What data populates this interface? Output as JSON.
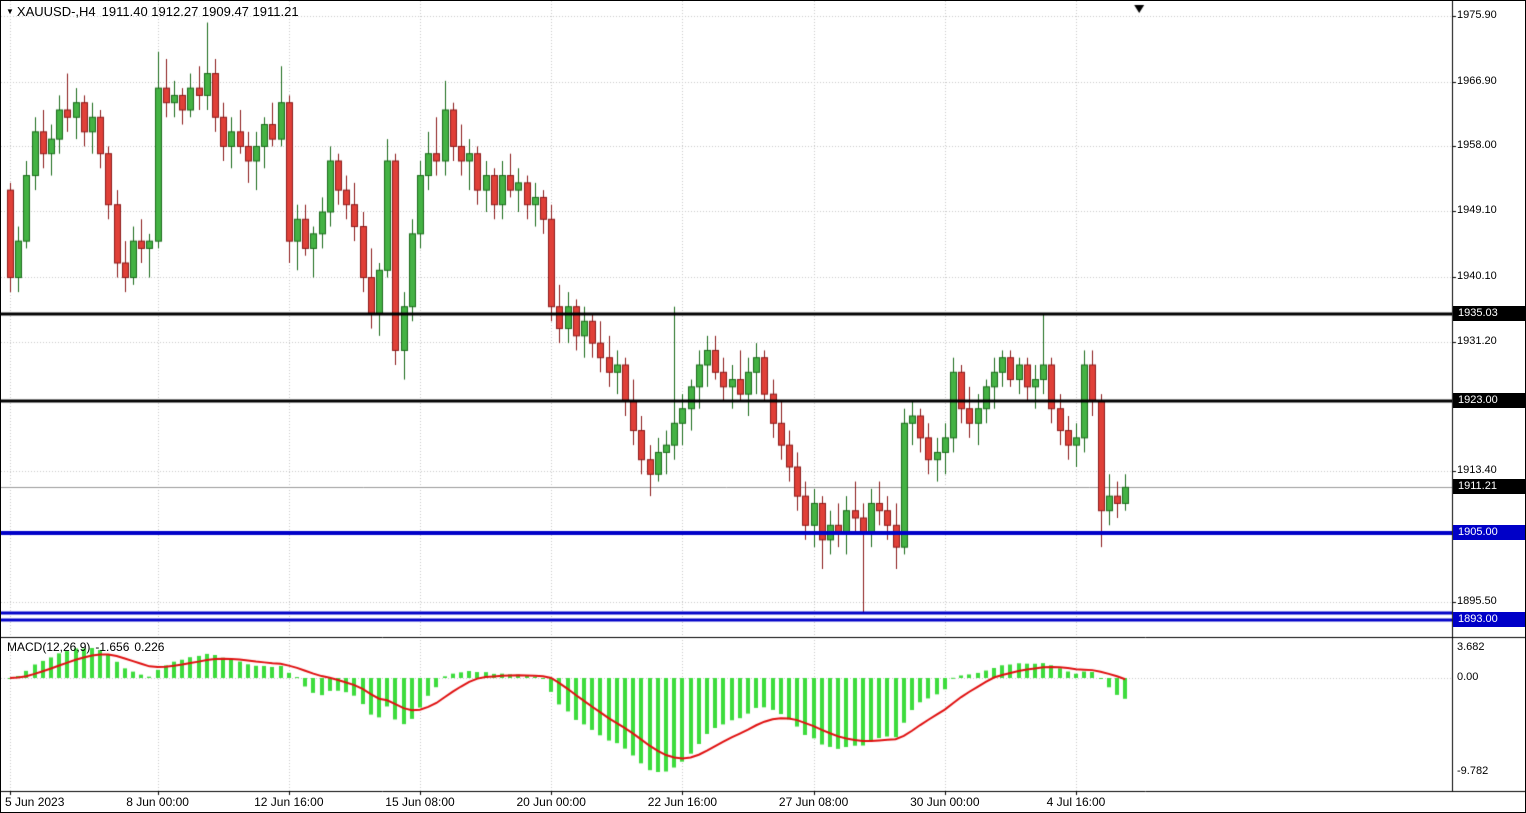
{
  "header": {
    "dropdown_icon": "▼",
    "symbol_period": "XAUUSD-,H4",
    "ohlc": "1911.40 1912.27 1909.47 1911.21"
  },
  "chart_data": {
    "type": "candlestick",
    "symbol": "XAUUSD-",
    "period": "H4",
    "ohlc_display": {
      "open": "1911.40",
      "high": "1912.27",
      "low": "1909.47",
      "close": "1911.21"
    },
    "y_ticks": [
      "1975.90",
      "1966.90",
      "1958.00",
      "1949.10",
      "1940.10",
      "1931.20",
      "1913.40",
      "1895.50"
    ],
    "price_lines": [
      {
        "price": 1935.03,
        "label": "1935.03",
        "color": "#000000",
        "width": 3,
        "badge_bg": "#000000"
      },
      {
        "price": 1923.0,
        "label": "1923.00",
        "color": "#000000",
        "width": 3,
        "badge_bg": "#000000"
      },
      {
        "price": 1905.0,
        "label": "1905.00",
        "color": "#0000c8",
        "width": 4,
        "badge_bg": "#0000c8"
      },
      {
        "price": 1894.0,
        "label": null,
        "color": "#0000c8",
        "width": 3,
        "badge_bg": null
      },
      {
        "price": 1893.0,
        "label": "1893.00",
        "color": "#0000c8",
        "width": 3,
        "badge_bg": "#0000c8"
      }
    ],
    "current_price": {
      "value": 1911.21,
      "label": "1911.21",
      "badge_bg": "#000000",
      "line_color": "#9a9a9a"
    },
    "x_labels": [
      {
        "index": 0,
        "label": "5 Jun 2023"
      },
      {
        "index": 18,
        "label": "8 Jun 00:00"
      },
      {
        "index": 34,
        "label": "12 Jun 16:00"
      },
      {
        "index": 50,
        "label": "15 Jun 08:00"
      },
      {
        "index": 66,
        "label": "20 Jun 00:00"
      },
      {
        "index": 82,
        "label": "22 Jun 16:00"
      },
      {
        "index": 98,
        "label": "27 Jun 08:00"
      },
      {
        "index": 114,
        "label": "30 Jun 00:00"
      },
      {
        "index": 130,
        "label": "4 Jul 16:00"
      }
    ],
    "up_color": "#44b244",
    "up_border": "#1a6b1a",
    "down_color": "#e04038",
    "down_border": "#8b1a1a",
    "candles_ohlc": [
      [
        1952,
        1953,
        1938,
        1940
      ],
      [
        1940,
        1947,
        1938,
        1945
      ],
      [
        1945,
        1956,
        1944,
        1954
      ],
      [
        1954,
        1962,
        1952,
        1960
      ],
      [
        1960,
        1963,
        1955,
        1957
      ],
      [
        1957,
        1961,
        1954,
        1959
      ],
      [
        1959,
        1965,
        1957,
        1963
      ],
      [
        1963,
        1968,
        1960,
        1962
      ],
      [
        1962,
        1966,
        1959,
        1964
      ],
      [
        1964,
        1965,
        1958,
        1960
      ],
      [
        1960,
        1964,
        1957,
        1962
      ],
      [
        1962,
        1963,
        1955,
        1957
      ],
      [
        1957,
        1958,
        1948,
        1950
      ],
      [
        1950,
        1952,
        1940,
        1942
      ],
      [
        1942,
        1945,
        1938,
        1940
      ],
      [
        1940,
        1947,
        1939,
        1945
      ],
      [
        1945,
        1948,
        1942,
        1944
      ],
      [
        1944,
        1946,
        1940,
        1945
      ],
      [
        1945,
        1971,
        1944,
        1966
      ],
      [
        1966,
        1970,
        1962,
        1964
      ],
      [
        1964,
        1967,
        1962,
        1965
      ],
      [
        1965,
        1966,
        1961,
        1963
      ],
      [
        1963,
        1968,
        1962,
        1966
      ],
      [
        1966,
        1969,
        1963,
        1965
      ],
      [
        1965,
        1975,
        1963,
        1968
      ],
      [
        1968,
        1970,
        1960,
        1962
      ],
      [
        1962,
        1964,
        1956,
        1958
      ],
      [
        1958,
        1962,
        1955,
        1960
      ],
      [
        1960,
        1963,
        1957,
        1958
      ],
      [
        1958,
        1960,
        1953,
        1956
      ],
      [
        1956,
        1960,
        1952,
        1958
      ],
      [
        1958,
        1962,
        1955,
        1961
      ],
      [
        1961,
        1964,
        1958,
        1959
      ],
      [
        1959,
        1969,
        1958,
        1964
      ],
      [
        1964,
        1965,
        1942,
        1945
      ],
      [
        1945,
        1950,
        1941,
        1948
      ],
      [
        1948,
        1950,
        1943,
        1944
      ],
      [
        1944,
        1947,
        1940,
        1946
      ],
      [
        1946,
        1951,
        1944,
        1949
      ],
      [
        1949,
        1958,
        1947,
        1956
      ],
      [
        1956,
        1957,
        1950,
        1952
      ],
      [
        1952,
        1954,
        1948,
        1950
      ],
      [
        1950,
        1953,
        1945,
        1947
      ],
      [
        1947,
        1949,
        1938,
        1940
      ],
      [
        1940,
        1944,
        1933,
        1935
      ],
      [
        1935,
        1942,
        1932,
        1941
      ],
      [
        1941,
        1959,
        1940,
        1956
      ],
      [
        1956,
        1957,
        1928,
        1930
      ],
      [
        1930,
        1938,
        1926,
        1936
      ],
      [
        1936,
        1948,
        1934,
        1946
      ],
      [
        1946,
        1956,
        1944,
        1954
      ],
      [
        1954,
        1960,
        1952,
        1957
      ],
      [
        1957,
        1962,
        1954,
        1956
      ],
      [
        1956,
        1967,
        1954,
        1963
      ],
      [
        1963,
        1964,
        1956,
        1958
      ],
      [
        1958,
        1961,
        1954,
        1956
      ],
      [
        1956,
        1959,
        1952,
        1957
      ],
      [
        1957,
        1958,
        1950,
        1952
      ],
      [
        1952,
        1956,
        1949,
        1954
      ],
      [
        1954,
        1955,
        1948,
        1950
      ],
      [
        1950,
        1956,
        1948,
        1954
      ],
      [
        1954,
        1957,
        1951,
        1952
      ],
      [
        1952,
        1955,
        1949,
        1953
      ],
      [
        1953,
        1954,
        1948,
        1950
      ],
      [
        1950,
        1953,
        1947,
        1951
      ],
      [
        1951,
        1952,
        1946,
        1948
      ],
      [
        1948,
        1950,
        1934,
        1936
      ],
      [
        1936,
        1939,
        1931,
        1933
      ],
      [
        1933,
        1938,
        1931,
        1936
      ],
      [
        1936,
        1937,
        1930,
        1932
      ],
      [
        1932,
        1936,
        1929,
        1934
      ],
      [
        1934,
        1935,
        1929,
        1931
      ],
      [
        1931,
        1934,
        1927,
        1929
      ],
      [
        1929,
        1932,
        1925,
        1927
      ],
      [
        1927,
        1930,
        1924,
        1928
      ],
      [
        1928,
        1929,
        1921,
        1923
      ],
      [
        1923,
        1926,
        1917,
        1919
      ],
      [
        1919,
        1921,
        1913,
        1915
      ],
      [
        1915,
        1917,
        1910,
        1913
      ],
      [
        1913,
        1918,
        1912,
        1916
      ],
      [
        1916,
        1919,
        1913,
        1917
      ],
      [
        1917,
        1936,
        1915,
        1920
      ],
      [
        1920,
        1924,
        1917,
        1922
      ],
      [
        1922,
        1926,
        1919,
        1925
      ],
      [
        1925,
        1930,
        1922,
        1928
      ],
      [
        1928,
        1932,
        1925,
        1930
      ],
      [
        1930,
        1932,
        1926,
        1927
      ],
      [
        1927,
        1929,
        1923,
        1925
      ],
      [
        1925,
        1928,
        1922,
        1926
      ],
      [
        1926,
        1930,
        1923,
        1924
      ],
      [
        1924,
        1929,
        1921,
        1927
      ],
      [
        1927,
        1931,
        1924,
        1929
      ],
      [
        1929,
        1930,
        1923,
        1924
      ],
      [
        1924,
        1926,
        1918,
        1920
      ],
      [
        1920,
        1923,
        1915,
        1917
      ],
      [
        1917,
        1919,
        1912,
        1914
      ],
      [
        1914,
        1916,
        1908,
        1910
      ],
      [
        1910,
        1912,
        1904,
        1906
      ],
      [
        1906,
        1911,
        1903,
        1909
      ],
      [
        1909,
        1910,
        1900,
        1904
      ],
      [
        1904,
        1908,
        1902,
        1906
      ],
      [
        1906,
        1909,
        1903,
        1905
      ],
      [
        1905,
        1910,
        1902,
        1908
      ],
      [
        1908,
        1912,
        1905,
        1907
      ],
      [
        1907,
        1909,
        1894,
        1905
      ],
      [
        1905,
        1911,
        1903,
        1909
      ],
      [
        1909,
        1912,
        1906,
        1908
      ],
      [
        1908,
        1910,
        1904,
        1906
      ],
      [
        1906,
        1909,
        1900,
        1903
      ],
      [
        1903,
        1922,
        1902,
        1920
      ],
      [
        1920,
        1923,
        1917,
        1921
      ],
      [
        1921,
        1922,
        1916,
        1918
      ],
      [
        1918,
        1920,
        1913,
        1915
      ],
      [
        1915,
        1918,
        1912,
        1916
      ],
      [
        1916,
        1920,
        1913,
        1918
      ],
      [
        1918,
        1929,
        1916,
        1927
      ],
      [
        1927,
        1928,
        1920,
        1922
      ],
      [
        1922,
        1925,
        1918,
        1920
      ],
      [
        1920,
        1924,
        1917,
        1922
      ],
      [
        1922,
        1926,
        1920,
        1925
      ],
      [
        1925,
        1929,
        1922,
        1927
      ],
      [
        1927,
        1930,
        1925,
        1929
      ],
      [
        1929,
        1930,
        1925,
        1926
      ],
      [
        1926,
        1929,
        1924,
        1928
      ],
      [
        1928,
        1929,
        1923,
        1925
      ],
      [
        1925,
        1928,
        1922,
        1926
      ],
      [
        1926,
        1935,
        1924,
        1928
      ],
      [
        1928,
        1929,
        1920,
        1922
      ],
      [
        1922,
        1924,
        1917,
        1919
      ],
      [
        1919,
        1921,
        1915,
        1917
      ],
      [
        1917,
        1920,
        1914,
        1918
      ],
      [
        1918,
        1930,
        1916,
        1928
      ],
      [
        1928,
        1930,
        1921,
        1923
      ],
      [
        1923,
        1924,
        1903,
        1908
      ],
      [
        1908,
        1913,
        1906,
        1910
      ],
      [
        1910,
        1912,
        1907,
        1909
      ],
      [
        1909,
        1913,
        1908,
        1911.21
      ]
    ],
    "macd": {
      "name": "MACD(12,26,9)",
      "main_value": "-1.656",
      "signal_value": "0.226",
      "params": "12,26,9",
      "axis_labels": [
        "3.682",
        "0.00",
        "-9.782"
      ],
      "axis_values": [
        3.682,
        0.0,
        -9.782
      ],
      "histogram_color": "#3ddc3d",
      "signal_color": "#e01010"
    }
  }
}
